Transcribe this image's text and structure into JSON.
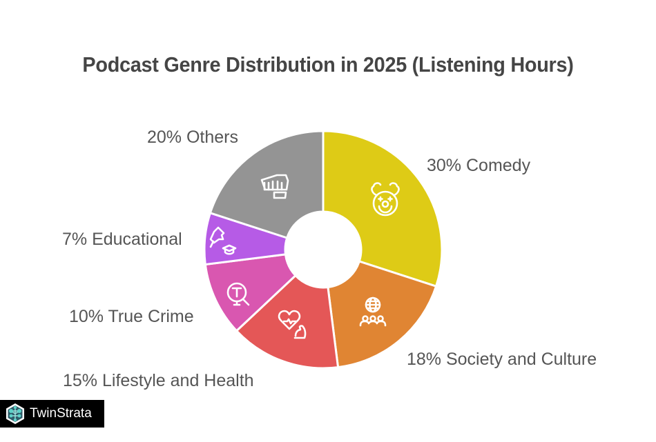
{
  "title": "Podcast Genre Distribution in 2025 (Listening Hours)",
  "watermark": {
    "brand": "TwinStrata",
    "icon": "network-hexagon-logo-icon"
  },
  "labels": {
    "comedy": "30% Comedy",
    "society": "18% Society and Culture",
    "lifestyle": "15% Lifestyle and Health",
    "truecrime": "10% True Crime",
    "educational": "7% Educational",
    "others": "20% Others"
  },
  "colors": {
    "comedy": "#DECB16",
    "society": "#E08533",
    "lifestyle": "#E45757",
    "truecrime": "#D957B0",
    "educational": "#B65BE6",
    "others": "#949494"
  },
  "icons": {
    "comedy": "clown-face-icon",
    "society": "globe-people-icon",
    "lifestyle": "heart-muscle-icon",
    "truecrime": "magnifier-t-icon",
    "educational": "pushpin-graduation-cap-icon",
    "others": "fist-icon"
  },
  "chart_data": {
    "type": "pie",
    "subtype": "donut",
    "title": "Podcast Genre Distribution in 2025 (Listening Hours)",
    "unit": "% of listening hours",
    "categories": [
      "Comedy",
      "Society and Culture",
      "Lifestyle and Health",
      "True Crime",
      "Educational",
      "Others"
    ],
    "values": [
      30,
      18,
      15,
      10,
      7,
      20
    ],
    "colors": [
      "#DECB16",
      "#E08533",
      "#E45757",
      "#D957B0",
      "#B65BE6",
      "#949494"
    ],
    "start_angle": "12 o'clock",
    "direction": "clockwise",
    "legend": "none (outside data labels)"
  }
}
